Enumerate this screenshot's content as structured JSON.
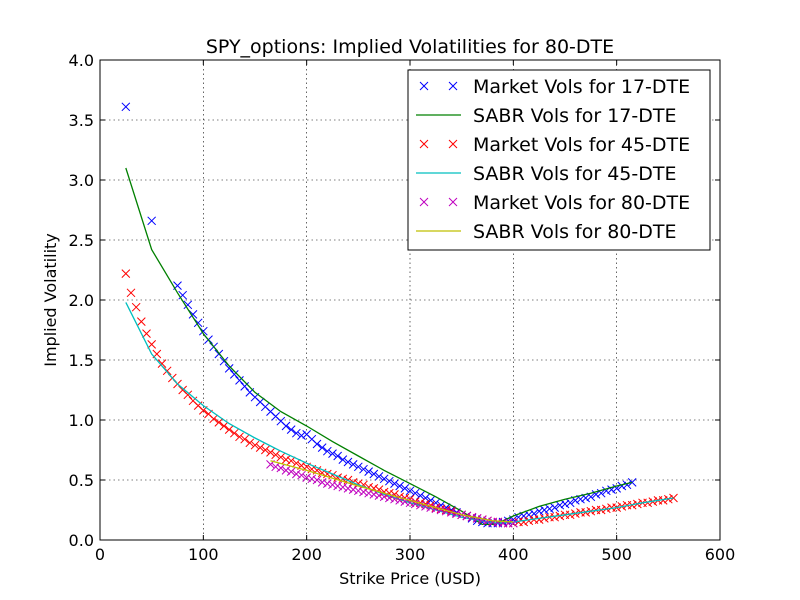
{
  "chart_data": {
    "type": "scatter",
    "title": "SPY_options: Implied Volatilities for 80-DTE",
    "xlabel": "Strike Price (USD)",
    "ylabel": "Implied Volatility",
    "xlim": [
      0,
      600
    ],
    "ylim": [
      0.0,
      4.0
    ],
    "xticks": [
      0,
      100,
      200,
      300,
      400,
      500,
      600
    ],
    "xtick_labels": [
      "0",
      "100",
      "200",
      "300",
      "400",
      "500",
      "600"
    ],
    "yticks": [
      0.0,
      0.5,
      1.0,
      1.5,
      2.0,
      2.5,
      3.0,
      3.5,
      4.0
    ],
    "ytick_labels": [
      "0.0",
      "0.5",
      "1.0",
      "1.5",
      "2.0",
      "2.5",
      "3.0",
      "3.5",
      "4.0"
    ],
    "grid": true,
    "legend_position": "top-right",
    "series": [
      {
        "name": "Market Vols for 17-DTE",
        "kind": "scatter",
        "marker": "x",
        "color": "#0000ff",
        "x": [
          25,
          50,
          75,
          80,
          85,
          90,
          95,
          100,
          105,
          110,
          115,
          120,
          125,
          130,
          135,
          140,
          145,
          150,
          155,
          160,
          165,
          170,
          175,
          180,
          185,
          190,
          195,
          200,
          205,
          210,
          215,
          220,
          225,
          230,
          235,
          240,
          245,
          250,
          255,
          260,
          265,
          270,
          275,
          280,
          285,
          290,
          295,
          300,
          305,
          310,
          315,
          320,
          325,
          330,
          335,
          340,
          345,
          350,
          355,
          360,
          365,
          370,
          375,
          380,
          385,
          390,
          395,
          400,
          405,
          410,
          415,
          420,
          425,
          430,
          435,
          440,
          445,
          450,
          455,
          460,
          465,
          470,
          475,
          480,
          485,
          490,
          495,
          500,
          505,
          510,
          515
        ],
        "y": [
          3.61,
          2.66,
          2.12,
          2.04,
          1.96,
          1.88,
          1.81,
          1.74,
          1.67,
          1.61,
          1.55,
          1.49,
          1.43,
          1.38,
          1.33,
          1.28,
          1.23,
          1.19,
          1.15,
          1.11,
          1.07,
          1.03,
          0.99,
          0.95,
          0.92,
          0.89,
          0.87,
          0.88,
          0.84,
          0.8,
          0.77,
          0.74,
          0.72,
          0.7,
          0.67,
          0.65,
          0.63,
          0.61,
          0.59,
          0.57,
          0.55,
          0.53,
          0.51,
          0.49,
          0.47,
          0.45,
          0.43,
          0.41,
          0.39,
          0.37,
          0.35,
          0.33,
          0.31,
          0.29,
          0.27,
          0.25,
          0.23,
          0.21,
          0.2,
          0.18,
          0.16,
          0.15,
          0.14,
          0.14,
          0.14,
          0.15,
          0.16,
          0.17,
          0.19,
          0.2,
          0.21,
          0.22,
          0.24,
          0.25,
          0.26,
          0.27,
          0.29,
          0.3,
          0.31,
          0.33,
          0.34,
          0.35,
          0.36,
          0.38,
          0.39,
          0.41,
          0.42,
          0.43,
          0.45,
          0.46,
          0.48
        ]
      },
      {
        "name": "SABR Vols for 17-DTE",
        "kind": "line",
        "color": "#008000",
        "x": [
          25,
          50,
          75,
          100,
          125,
          150,
          175,
          200,
          225,
          250,
          275,
          300,
          325,
          350,
          370,
          380,
          390,
          400,
          425,
          450,
          475,
          500,
          515
        ],
        "y": [
          3.1,
          2.42,
          2.06,
          1.72,
          1.45,
          1.23,
          1.07,
          0.95,
          0.82,
          0.7,
          0.58,
          0.47,
          0.36,
          0.24,
          0.13,
          0.13,
          0.16,
          0.2,
          0.28,
          0.34,
          0.39,
          0.45,
          0.48
        ]
      },
      {
        "name": "Market Vols for 45-DTE",
        "kind": "scatter",
        "marker": "x",
        "color": "#ff0000",
        "x": [
          25,
          30,
          35,
          40,
          45,
          50,
          55,
          60,
          65,
          70,
          75,
          80,
          85,
          90,
          95,
          100,
          105,
          110,
          115,
          120,
          125,
          130,
          135,
          140,
          145,
          150,
          155,
          160,
          165,
          170,
          175,
          180,
          185,
          190,
          195,
          200,
          205,
          210,
          215,
          220,
          225,
          230,
          235,
          240,
          245,
          250,
          255,
          260,
          265,
          270,
          275,
          280,
          285,
          290,
          295,
          300,
          305,
          310,
          315,
          320,
          325,
          330,
          335,
          340,
          345,
          350,
          355,
          360,
          365,
          370,
          375,
          380,
          385,
          390,
          395,
          400,
          405,
          410,
          415,
          420,
          425,
          430,
          435,
          440,
          445,
          450,
          455,
          460,
          465,
          470,
          475,
          480,
          485,
          490,
          495,
          500,
          505,
          510,
          515,
          520,
          525,
          530,
          535,
          540,
          545,
          550,
          555
        ],
        "y": [
          2.22,
          2.06,
          1.94,
          1.82,
          1.72,
          1.63,
          1.55,
          1.47,
          1.41,
          1.35,
          1.3,
          1.25,
          1.21,
          1.16,
          1.12,
          1.08,
          1.05,
          1.01,
          0.98,
          0.95,
          0.92,
          0.89,
          0.86,
          0.84,
          0.81,
          0.79,
          0.77,
          0.75,
          0.73,
          0.71,
          0.69,
          0.67,
          0.66,
          0.64,
          0.62,
          0.61,
          0.59,
          0.58,
          0.56,
          0.55,
          0.54,
          0.52,
          0.51,
          0.5,
          0.48,
          0.47,
          0.46,
          0.44,
          0.43,
          0.42,
          0.4,
          0.39,
          0.38,
          0.36,
          0.35,
          0.34,
          0.32,
          0.31,
          0.3,
          0.29,
          0.27,
          0.26,
          0.25,
          0.24,
          0.22,
          0.21,
          0.2,
          0.19,
          0.18,
          0.17,
          0.16,
          0.15,
          0.15,
          0.14,
          0.14,
          0.14,
          0.15,
          0.15,
          0.16,
          0.17,
          0.17,
          0.18,
          0.19,
          0.19,
          0.2,
          0.21,
          0.21,
          0.22,
          0.23,
          0.23,
          0.24,
          0.25,
          0.25,
          0.26,
          0.27,
          0.27,
          0.28,
          0.29,
          0.29,
          0.3,
          0.31,
          0.31,
          0.32,
          0.33,
          0.33,
          0.34,
          0.35
        ]
      },
      {
        "name": "SABR Vols for 45-DTE",
        "kind": "line",
        "color": "#00bfbf",
        "x": [
          25,
          50,
          75,
          100,
          125,
          150,
          175,
          200,
          225,
          250,
          275,
          300,
          325,
          350,
          375,
          385,
          400,
          425,
          450,
          475,
          500,
          525,
          555
        ],
        "y": [
          1.98,
          1.55,
          1.3,
          1.12,
          0.97,
          0.85,
          0.74,
          0.64,
          0.55,
          0.46,
          0.38,
          0.31,
          0.25,
          0.19,
          0.15,
          0.14,
          0.15,
          0.18,
          0.21,
          0.24,
          0.27,
          0.31,
          0.35
        ]
      },
      {
        "name": "Market Vols for 80-DTE",
        "kind": "scatter",
        "marker": "x",
        "color": "#bf00bf",
        "x": [
          165,
          170,
          175,
          180,
          185,
          190,
          195,
          200,
          205,
          210,
          215,
          220,
          225,
          230,
          235,
          240,
          245,
          250,
          255,
          260,
          265,
          270,
          275,
          280,
          285,
          290,
          295,
          300,
          305,
          310,
          315,
          320,
          325,
          330,
          335,
          340,
          345,
          350,
          355,
          360,
          365,
          370,
          375,
          380,
          385,
          390,
          395,
          400
        ],
        "y": [
          0.63,
          0.61,
          0.6,
          0.58,
          0.57,
          0.55,
          0.54,
          0.52,
          0.51,
          0.5,
          0.48,
          0.47,
          0.46,
          0.45,
          0.44,
          0.43,
          0.42,
          0.41,
          0.4,
          0.39,
          0.38,
          0.37,
          0.36,
          0.35,
          0.34,
          0.33,
          0.32,
          0.31,
          0.3,
          0.29,
          0.28,
          0.27,
          0.26,
          0.25,
          0.24,
          0.23,
          0.22,
          0.21,
          0.2,
          0.19,
          0.18,
          0.17,
          0.16,
          0.15,
          0.15,
          0.14,
          0.14,
          0.14
        ]
      },
      {
        "name": "SABR Vols for 80-DTE",
        "kind": "line",
        "color": "#bfbf00",
        "x": [
          165,
          200,
          250,
          300,
          350,
          380,
          400
        ],
        "y": [
          0.66,
          0.58,
          0.45,
          0.33,
          0.21,
          0.16,
          0.15
        ]
      }
    ]
  }
}
